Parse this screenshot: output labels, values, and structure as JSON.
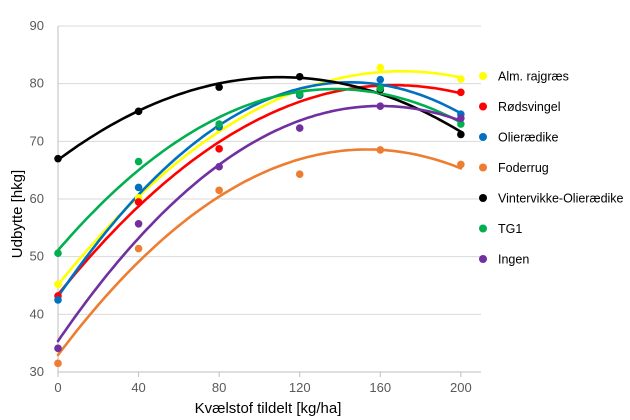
{
  "chart_data": {
    "type": "scatter",
    "title": "",
    "xlabel": "Kvælstof tildelt [kg/ha]",
    "ylabel": "Udbytte [hkg]",
    "xlim": [
      0,
      210
    ],
    "ylim": [
      30,
      90
    ],
    "xticks": [
      0,
      40,
      80,
      120,
      160,
      200
    ],
    "yticks": [
      30,
      40,
      50,
      60,
      70,
      80,
      90
    ],
    "grid": "horizontal",
    "legend_position": "right",
    "trendline": "polynomial order 2",
    "x": [
      0,
      40,
      80,
      120,
      160,
      200
    ],
    "series": [
      {
        "name": "Alm. rajgræs",
        "color": "#FFFF00",
        "values": [
          45.2,
          60.2,
          72.2,
          78.0,
          82.8,
          80.8
        ]
      },
      {
        "name": "Rødsvingel",
        "color": "#FF0000",
        "values": [
          43.2,
          59.5,
          68.7,
          78.0,
          79.0,
          78.5
        ]
      },
      {
        "name": "Olierædike",
        "color": "#0070C0",
        "values": [
          42.5,
          62.0,
          72.5,
          78.0,
          80.7,
          74.7
        ]
      },
      {
        "name": "Foderrug",
        "color": "#ED7D31",
        "values": [
          31.5,
          51.4,
          61.5,
          64.3,
          68.5,
          66.0
        ]
      },
      {
        "name": "Vintervikke-Olierædike",
        "color": "#000000",
        "values": [
          67.0,
          75.2,
          79.4,
          81.2,
          79.0,
          71.2
        ]
      },
      {
        "name": "TG1",
        "color": "#00B050",
        "values": [
          50.6,
          66.5,
          73.0,
          78.2,
          79.2,
          73.0
        ]
      },
      {
        "name": "Ingen",
        "color": "#7030A0",
        "values": [
          34.1,
          55.7,
          65.6,
          72.3,
          76.1,
          74.0
        ]
      }
    ]
  }
}
